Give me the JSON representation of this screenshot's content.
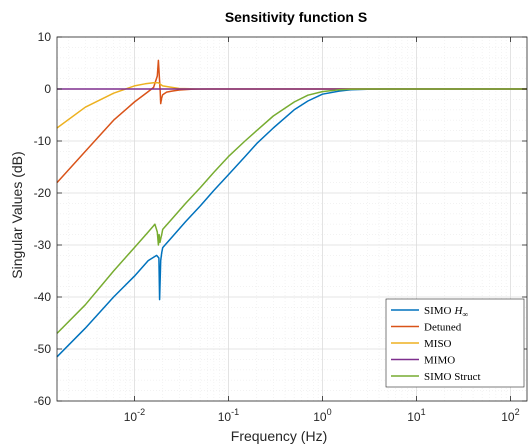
{
  "chart_data": {
    "type": "line",
    "title": "Sensitivity function S",
    "xlabel": "Frequency (Hz)",
    "ylabel": "Singular Values (dB)",
    "xscale": "log",
    "xlim": [
      0.0015,
      150
    ],
    "ylim": [
      -60,
      10
    ],
    "xticks": [
      {
        "value": 0.01,
        "base": "10",
        "exp": "-2"
      },
      {
        "value": 0.1,
        "base": "10",
        "exp": "-1"
      },
      {
        "value": 1,
        "base": "10",
        "exp": "0"
      },
      {
        "value": 10,
        "base": "10",
        "exp": "1"
      },
      {
        "value": 100,
        "base": "10",
        "exp": "2"
      }
    ],
    "yticks": [
      10,
      0,
      -10,
      -20,
      -30,
      -40,
      -50,
      -60
    ],
    "ytick_labels": [
      "10",
      "0",
      "-10",
      "-20",
      "-30",
      "-40",
      "-50",
      "-60"
    ],
    "grid": true,
    "minor_grid": true,
    "legend_position": "bottom-right",
    "series": [
      {
        "name": "SIMO",
        "name_math": "H",
        "name_sub": "∞",
        "color": "#0072BD",
        "x": [
          0.0015,
          0.003,
          0.006,
          0.01,
          0.014,
          0.0172,
          0.0182,
          0.0185,
          0.019,
          0.0195,
          0.02,
          0.025,
          0.035,
          0.05,
          0.07,
          0.1,
          0.15,
          0.2,
          0.3,
          0.5,
          0.7,
          1,
          1.5,
          2,
          3,
          5,
          10,
          150
        ],
        "y": [
          -51.5,
          -46,
          -40,
          -36,
          -33,
          -32,
          -32.5,
          -40.5,
          -33,
          -31.5,
          -30.5,
          -28.5,
          -25.5,
          -22.5,
          -19.5,
          -16.5,
          -13,
          -10.5,
          -7.5,
          -4,
          -2.3,
          -1,
          -0.4,
          -0.15,
          -0.05,
          0,
          0,
          0
        ]
      },
      {
        "name": "Detuned",
        "color": "#D95319",
        "x": [
          0.0015,
          0.003,
          0.006,
          0.01,
          0.014,
          0.016,
          0.0175,
          0.018,
          0.0185,
          0.0188,
          0.019,
          0.0195,
          0.02,
          0.022,
          0.025,
          0.03,
          0.04,
          0.06,
          0.1,
          150
        ],
        "y": [
          -18,
          -12,
          -6,
          -2.5,
          -0.5,
          0.3,
          2.5,
          5.5,
          1.5,
          -0.5,
          -2.8,
          -1.7,
          -1.1,
          -0.6,
          -0.4,
          -0.2,
          -0.05,
          0,
          0,
          0
        ]
      },
      {
        "name": "MISO",
        "color": "#EDB120",
        "x": [
          0.0015,
          0.003,
          0.006,
          0.01,
          0.013,
          0.016,
          0.018,
          0.02,
          0.025,
          0.03,
          0.05,
          0.1,
          150
        ],
        "y": [
          -7.5,
          -3.5,
          -0.8,
          0.6,
          1,
          1.2,
          1.2,
          0.6,
          0.3,
          0.1,
          0,
          0,
          0
        ]
      },
      {
        "name": "MIMO",
        "color": "#7E2F8E",
        "x": [
          0.0015,
          150
        ],
        "y": [
          0,
          0
        ]
      },
      {
        "name": "SIMO Struct",
        "color": "#77AC30",
        "x": [
          0.0015,
          0.003,
          0.006,
          0.01,
          0.014,
          0.0165,
          0.0175,
          0.018,
          0.0183,
          0.0187,
          0.019,
          0.0195,
          0.02,
          0.025,
          0.035,
          0.05,
          0.07,
          0.1,
          0.15,
          0.2,
          0.3,
          0.5,
          0.7,
          1,
          1.5,
          2,
          3,
          5,
          150
        ],
        "y": [
          -47,
          -41.5,
          -35,
          -30.5,
          -27.5,
          -26,
          -27.5,
          -30,
          -28,
          -29.5,
          -28.8,
          -28,
          -27,
          -25,
          -22,
          -19,
          -16,
          -13,
          -10,
          -8,
          -5.2,
          -2.5,
          -1.2,
          -0.5,
          -0.15,
          -0.05,
          0,
          0,
          0
        ]
      }
    ]
  }
}
